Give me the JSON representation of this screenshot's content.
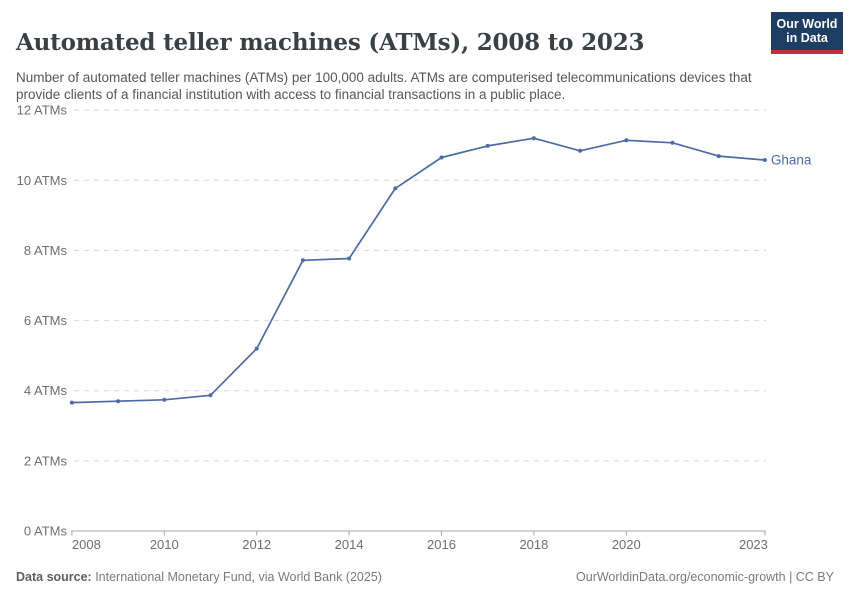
{
  "header": {
    "title": "Automated teller machines (ATMs), 2008 to 2023",
    "subtitle": "Number of automated teller machines (ATMs) per 100,000 adults. ATMs are computerised telecommunications devices that provide clients of a financial institution with access to financial transactions in a public place.",
    "logo": {
      "line1": "Our World",
      "line2": "in Data"
    }
  },
  "chart_data": {
    "type": "line",
    "title": "Automated teller machines (ATMs), 2008 to 2023",
    "x": [
      2008,
      2009,
      2010,
      2011,
      2012,
      2013,
      2014,
      2015,
      2016,
      2017,
      2018,
      2019,
      2020,
      2021,
      2022,
      2023
    ],
    "series": [
      {
        "name": "Ghana",
        "color": "#4c6ba5",
        "values": [
          3.66,
          3.7,
          3.74,
          3.87,
          5.2,
          7.72,
          7.77,
          9.77,
          10.65,
          10.98,
          11.2,
          10.84,
          11.14,
          11.07,
          10.69,
          10.58
        ]
      }
    ],
    "xlabel": "",
    "ylabel": "",
    "ylim": [
      0,
      12
    ],
    "ytick_step": 2,
    "ytick_suffix": " ATMs",
    "xticks": [
      2008,
      2010,
      2012,
      2014,
      2016,
      2018,
      2020,
      2023
    ],
    "grid": "horizontal-dashed",
    "legend_position": "end-of-line-label"
  },
  "footer": {
    "datasource_label": "Data source:",
    "datasource_value": " International Monetary Fund, via World Bank (2025)",
    "right_text": "OurWorldinData.org/economic-growth | CC BY"
  },
  "colors": {
    "line": "#4c6ba5",
    "axis_text": "#6e6e6e",
    "gridline": "#d8d8d8",
    "axis_line": "#a7a7a7",
    "logo_bg": "#1d3d63",
    "logo_accent": "#c0333b"
  }
}
